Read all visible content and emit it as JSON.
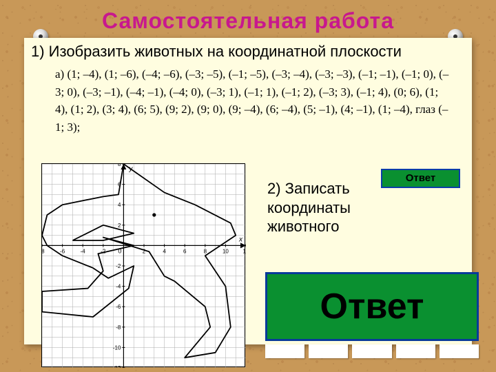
{
  "title": "Самостоятельная работа",
  "task1": "1) Изобразить животных  на координатной плоскости",
  "coords_prefix": "а) ",
  "coords_list": "(1; –4), (1; –6), (–4; –6), (–3; –5), (–1; –5), (–3; –4), (–3; –3), (–1; –1), (–1; 0), (–3; 0), (–3; –1), (–4; –1), (–4; 0), (–3; 1), (–1; 1), (–1; 2), (–3; 3), (–1; 4), (0; 6), (1; 4), (1; 2), (3; 4), (6; 5), (9; 2), (9; 0), (9; –4), (6; –4), (5; –1), (4; –1), (1; –4), глаз (–1; 3);",
  "task2_l1": "2) Записать",
  "task2_l2": "координаты",
  "task2_l3": "животного",
  "answer_small": "Ответ",
  "answer_large": "Ответ",
  "colors": {
    "cork": "#c89858",
    "note": "#fffde0",
    "title": "#c8188e",
    "btn_bg": "#0a9030",
    "btn_border": "#083a9a"
  },
  "graph": {
    "type": "line-drawing",
    "xlim": [
      -8,
      12
    ],
    "ylim": [
      -12,
      8
    ],
    "tick_step": 2,
    "grid_color": "#aaa",
    "axis_color": "#000",
    "outline_color": "#000",
    "outline_width": 1.8,
    "eye_point": [
      3,
      3
    ],
    "shark_path": [
      [
        7,
        4
      ],
      [
        4,
        5.2
      ],
      [
        0,
        8
      ],
      [
        -0.5,
        5
      ],
      [
        -2,
        4.8
      ],
      [
        -6,
        4
      ],
      [
        -7.5,
        3
      ],
      [
        -8,
        1
      ],
      [
        -7.5,
        0
      ],
      [
        -6,
        -1
      ],
      [
        -3,
        -2.2
      ],
      [
        -1.5,
        -3.2
      ],
      [
        1,
        -2
      ],
      [
        0.5,
        -4.2
      ],
      [
        -3,
        -7
      ],
      [
        -8,
        -6.5
      ],
      [
        -8,
        -4.5
      ],
      [
        -3.5,
        -4.2
      ],
      [
        -2,
        -2.5
      ],
      [
        -2.5,
        -0.8
      ],
      [
        1,
        0
      ],
      [
        -2,
        0.8
      ],
      [
        2.5,
        -0.6
      ],
      [
        4,
        -3
      ],
      [
        5,
        -3.5
      ],
      [
        8,
        -6
      ],
      [
        8.5,
        -8
      ],
      [
        6,
        -11
      ],
      [
        9,
        -10.5
      ],
      [
        10.5,
        -8
      ],
      [
        10,
        -4
      ],
      [
        8,
        -1
      ],
      [
        11,
        1
      ],
      [
        10.5,
        2.2
      ],
      [
        7,
        4
      ]
    ],
    "fin_path": [
      [
        -5,
        0.5
      ],
      [
        -2,
        2
      ],
      [
        1,
        1.2
      ],
      [
        -2,
        0.5
      ],
      [
        -5,
        0.5
      ]
    ]
  }
}
